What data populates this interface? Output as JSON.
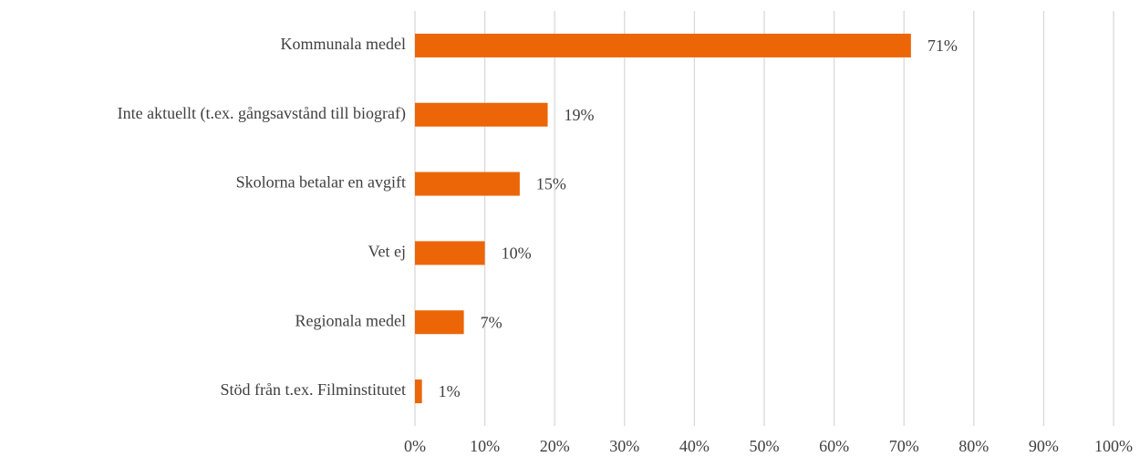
{
  "chart_data": {
    "type": "bar",
    "orientation": "horizontal",
    "categories": [
      "Kommunala medel",
      "Inte aktuellt (t.ex. gångsavstånd till biograf)",
      "Skolorna betalar en avgift",
      "Vet ej",
      "Regionala medel",
      "Stöd från t.ex. Filminstitutet"
    ],
    "values": [
      71,
      19,
      15,
      10,
      7,
      1
    ],
    "value_labels": [
      "71%",
      "19%",
      "15%",
      "10%",
      "7%",
      "1%"
    ],
    "color": "#ec6608",
    "xlim": [
      0,
      100
    ],
    "xticks": [
      {
        "value": 0,
        "label": "0%"
      },
      {
        "value": 10,
        "label": "10%"
      },
      {
        "value": 20,
        "label": "20%"
      },
      {
        "value": 30,
        "label": "30%"
      },
      {
        "value": 40,
        "label": "40%"
      },
      {
        "value": 50,
        "label": "50%"
      },
      {
        "value": 60,
        "label": "60%"
      },
      {
        "value": 70,
        "label": "70%"
      },
      {
        "value": 80,
        "label": "80%"
      },
      {
        "value": 90,
        "label": "90%"
      },
      {
        "value": 100,
        "label": "100%"
      }
    ],
    "grid": true
  }
}
